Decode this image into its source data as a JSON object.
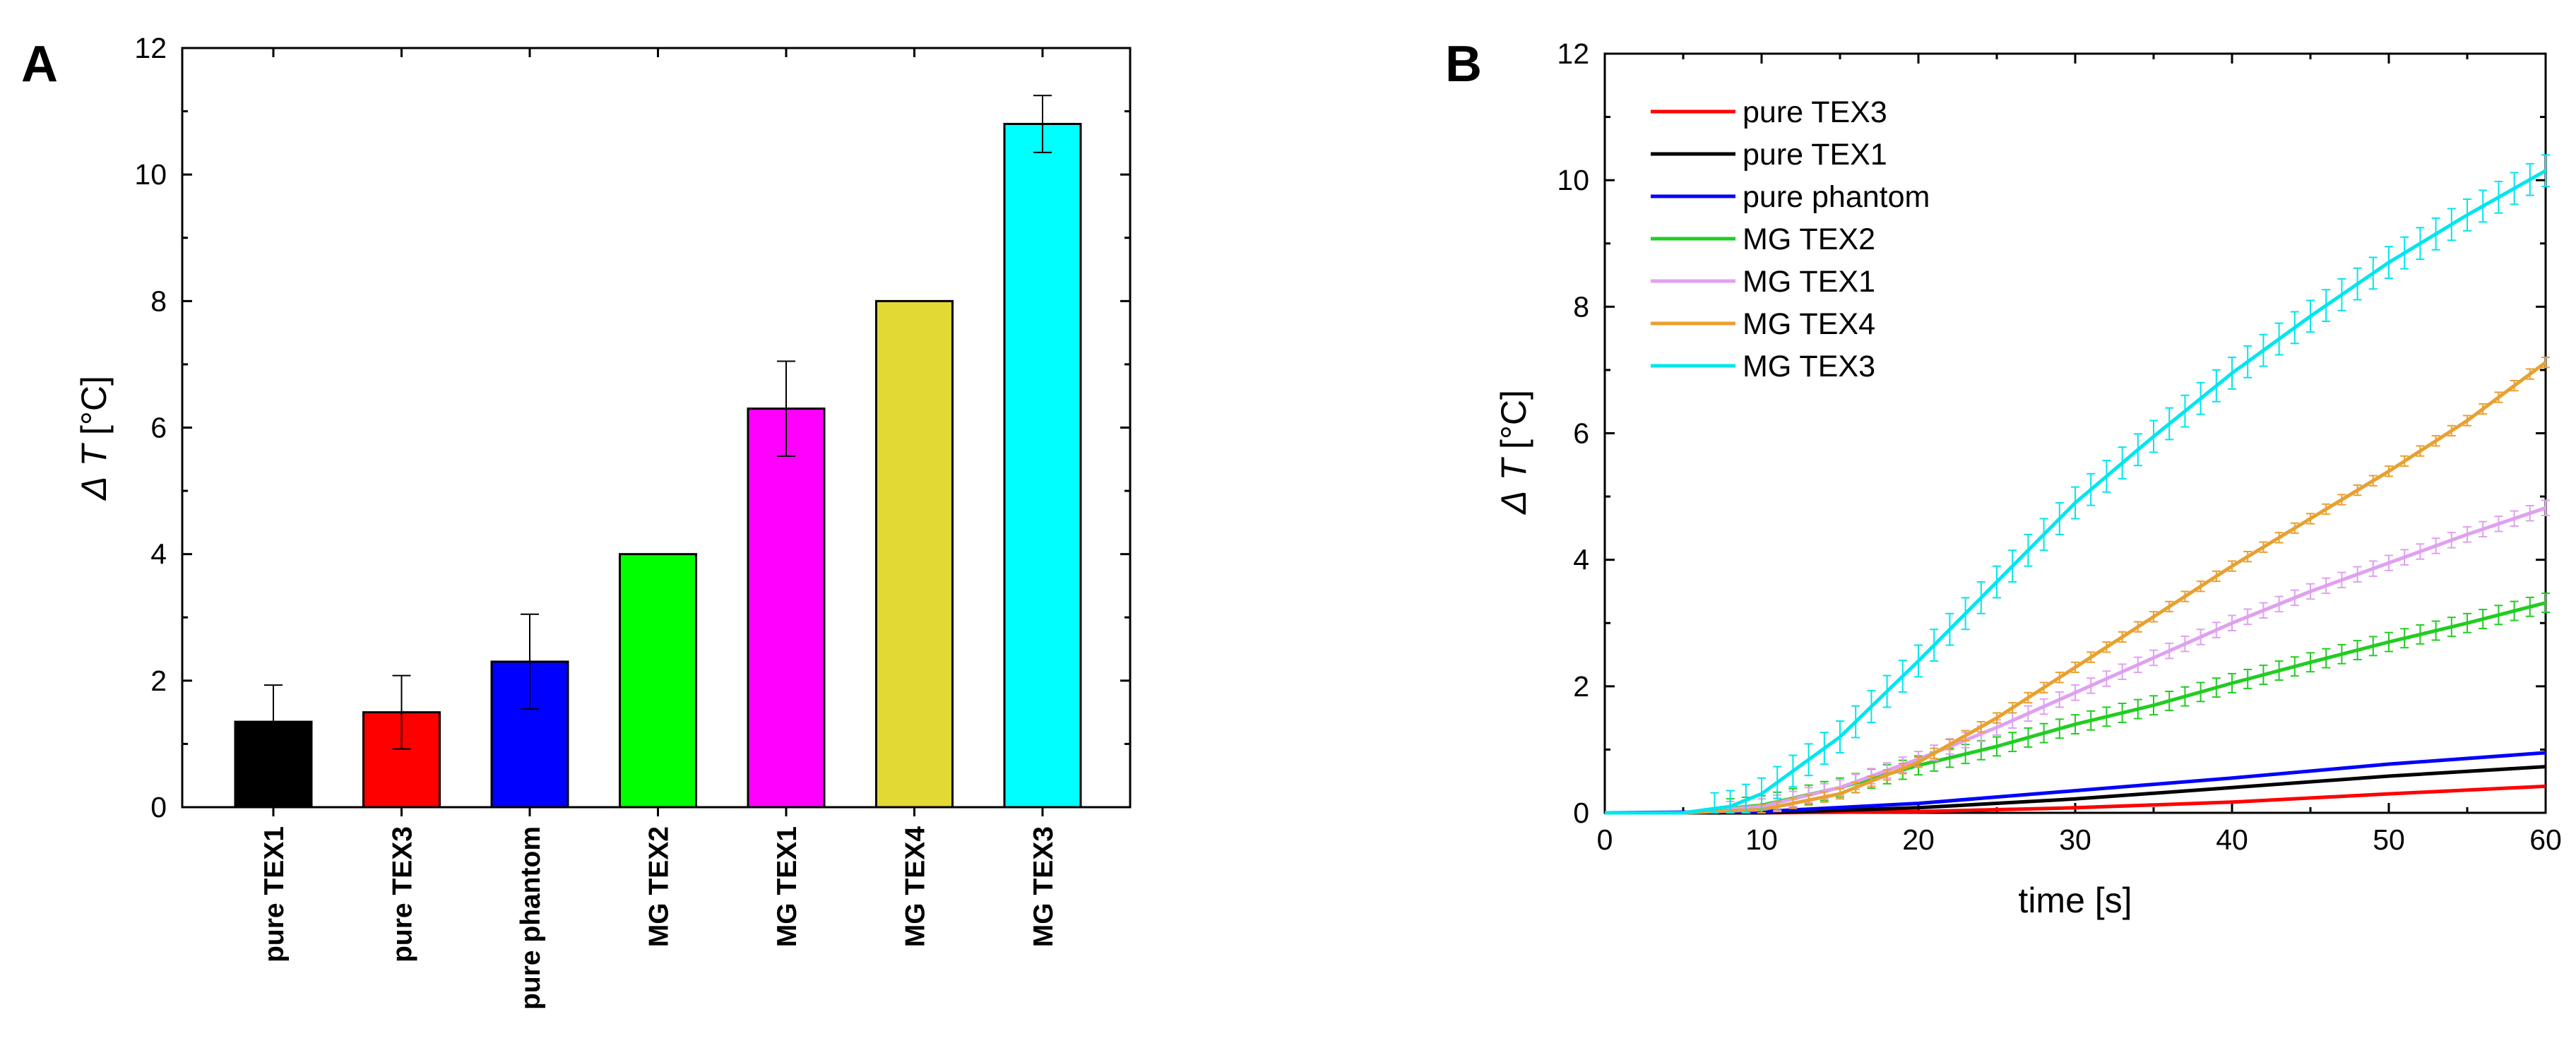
{
  "chart_data": [
    {
      "panel": "A",
      "type": "bar",
      "title": "",
      "xlabel": "",
      "ylabel_symbol": "Δ",
      "ylabel_var": "T",
      "ylabel_unit": "[°C]",
      "ylim": [
        0,
        12
      ],
      "yticks": [
        0,
        2,
        4,
        6,
        8,
        10,
        12
      ],
      "grid": false,
      "categories": [
        "pure TEX1",
        "pure TEX3",
        "pure phantom",
        "MG TEX2",
        "MG TEX1",
        "MG TEX4",
        "MG TEX3"
      ],
      "values": [
        1.35,
        1.5,
        2.3,
        4.0,
        6.3,
        8.0,
        10.8
      ],
      "errors": [
        0.58,
        0.58,
        0.75,
        0,
        0.75,
        0,
        0.45
      ],
      "colors": [
        "#000000",
        "#ff0000",
        "#0000ff",
        "#00ff00",
        "#ff00ff",
        "#e3d935",
        "#00ffff"
      ]
    },
    {
      "panel": "B",
      "type": "line",
      "title": "",
      "xlabel": "time [s]",
      "ylabel_symbol": "Δ",
      "ylabel_var": "T",
      "ylabel_unit": "[°C]",
      "xlim": [
        0,
        60
      ],
      "ylim": [
        0,
        12
      ],
      "xticks": [
        0,
        10,
        20,
        30,
        40,
        50,
        60
      ],
      "yticks": [
        0,
        2,
        4,
        6,
        8,
        10,
        12
      ],
      "grid": false,
      "legend_position": "top-left",
      "series": [
        {
          "name": "pure TEX3",
          "color": "#ff0000",
          "points": [
            [
              0,
              0
            ],
            [
              10,
              0.0
            ],
            [
              20,
              0.02
            ],
            [
              30,
              0.08
            ],
            [
              40,
              0.17
            ],
            [
              50,
              0.3
            ],
            [
              60,
              0.42
            ]
          ],
          "error": 0
        },
        {
          "name": "pure TEX1",
          "color": "#000000",
          "points": [
            [
              0,
              0
            ],
            [
              10,
              0.0
            ],
            [
              20,
              0.08
            ],
            [
              30,
              0.22
            ],
            [
              40,
              0.4
            ],
            [
              50,
              0.58
            ],
            [
              60,
              0.73
            ]
          ],
          "error": 0
        },
        {
          "name": "pure phantom",
          "color": "#0000ff",
          "points": [
            [
              0,
              0
            ],
            [
              10,
              0.02
            ],
            [
              20,
              0.15
            ],
            [
              30,
              0.35
            ],
            [
              40,
              0.55
            ],
            [
              50,
              0.77
            ],
            [
              60,
              0.95
            ]
          ],
          "error": 0
        },
        {
          "name": "MG TEX2",
          "color": "#22cc22",
          "points": [
            [
              0,
              0
            ],
            [
              5,
              0.0
            ],
            [
              10,
              0.12
            ],
            [
              15,
              0.4
            ],
            [
              20,
              0.75
            ],
            [
              25,
              1.05
            ],
            [
              30,
              1.4
            ],
            [
              35,
              1.7
            ],
            [
              40,
              2.05
            ],
            [
              45,
              2.38
            ],
            [
              50,
              2.7
            ],
            [
              55,
              3.0
            ],
            [
              60,
              3.32
            ]
          ],
          "error": 0.15
        },
        {
          "name": "MG TEX1",
          "color": "#e0a0f0",
          "points": [
            [
              0,
              0
            ],
            [
              5,
              0.0
            ],
            [
              10,
              0.1
            ],
            [
              15,
              0.4
            ],
            [
              20,
              0.85
            ],
            [
              25,
              1.35
            ],
            [
              30,
              1.9
            ],
            [
              35,
              2.45
            ],
            [
              40,
              3.0
            ],
            [
              45,
              3.5
            ],
            [
              50,
              3.95
            ],
            [
              55,
              4.4
            ],
            [
              60,
              4.82
            ]
          ],
          "error": 0.12
        },
        {
          "name": "MG TEX4",
          "color": "#e8a030",
          "points": [
            [
              0,
              0
            ],
            [
              5,
              0.0
            ],
            [
              10,
              0.05
            ],
            [
              15,
              0.3
            ],
            [
              20,
              0.8
            ],
            [
              25,
              1.5
            ],
            [
              30,
              2.3
            ],
            [
              35,
              3.1
            ],
            [
              40,
              3.9
            ],
            [
              45,
              4.65
            ],
            [
              50,
              5.4
            ],
            [
              55,
              6.2
            ],
            [
              60,
              7.12
            ]
          ],
          "error": 0.08
        },
        {
          "name": "MG TEX3",
          "color": "#00e5ee",
          "points": [
            [
              0,
              0
            ],
            [
              5,
              0.0
            ],
            [
              8,
              0.1
            ],
            [
              10,
              0.3
            ],
            [
              15,
              1.2
            ],
            [
              20,
              2.4
            ],
            [
              25,
              3.65
            ],
            [
              30,
              4.9
            ],
            [
              35,
              5.95
            ],
            [
              40,
              6.95
            ],
            [
              45,
              7.85
            ],
            [
              50,
              8.7
            ],
            [
              55,
              9.45
            ],
            [
              60,
              10.15
            ]
          ],
          "error": 0.25
        }
      ]
    }
  ]
}
